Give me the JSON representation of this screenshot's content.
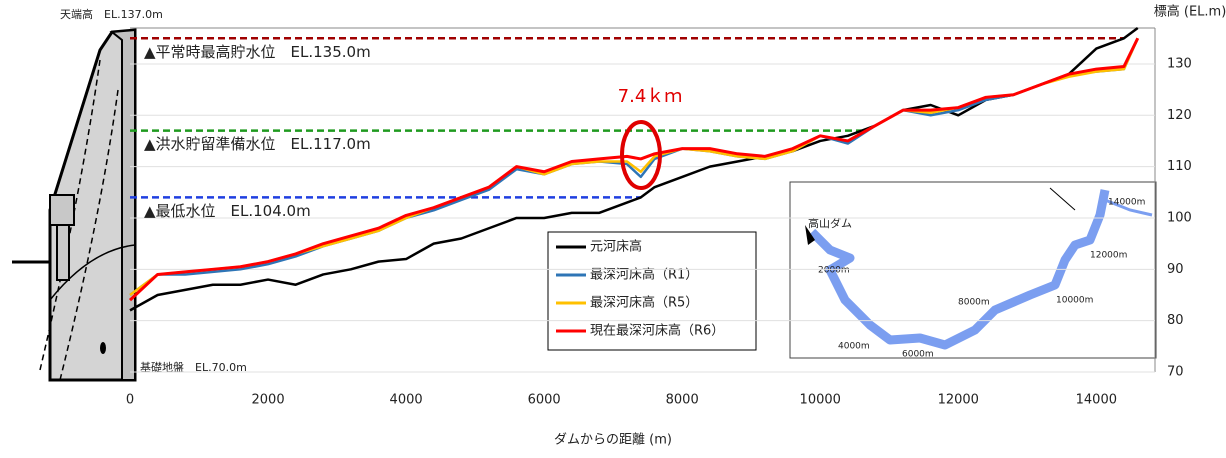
{
  "chart_data": {
    "type": "line",
    "x_label": "ダムからの距離 (m)",
    "y_label": "標高 (EL.m)",
    "x": [
      0,
      400,
      800,
      1200,
      1600,
      2000,
      2400,
      2800,
      3200,
      3600,
      4000,
      4400,
      4800,
      5200,
      5600,
      6000,
      6400,
      6800,
      7200,
      7400,
      7600,
      8000,
      8400,
      8800,
      9200,
      9600,
      10000,
      10400,
      10800,
      11200,
      11600,
      12000,
      12400,
      12800,
      13200,
      13600,
      14000,
      14400,
      14600
    ],
    "series": [
      {
        "name": "元河床高",
        "color": "#000000",
        "values": [
          82,
          85,
          86,
          87,
          87,
          88,
          87,
          89,
          90,
          91.5,
          92,
          95,
          96,
          98,
          100,
          100,
          101,
          101,
          103,
          104,
          106,
          108,
          110,
          111,
          112,
          113,
          115,
          116,
          118,
          121,
          122,
          120,
          123,
          124,
          126,
          128,
          133,
          135,
          137
        ]
      },
      {
        "name": "最深河床高（R1）",
        "color": "#2e75b6",
        "values": [
          85,
          89,
          89,
          89.5,
          90,
          91,
          92.5,
          94.5,
          96,
          97.5,
          100,
          101.5,
          103.5,
          105.5,
          109.5,
          108.5,
          110.5,
          111,
          110.5,
          108,
          111.5,
          113.5,
          113,
          112,
          111.5,
          113,
          116,
          114.5,
          118,
          121,
          120,
          121,
          123,
          124,
          126,
          128,
          128.5,
          129,
          135
        ]
      },
      {
        "name": "最深河床高（R5）",
        "color": "#ffc000",
        "values": [
          85,
          89,
          89.5,
          90,
          90.5,
          91.5,
          93,
          94.5,
          96,
          97.5,
          100,
          102,
          104,
          106,
          110,
          108.5,
          110.5,
          111,
          111,
          109,
          112,
          113.5,
          113,
          112,
          111.5,
          113,
          116,
          115,
          118,
          121,
          120.5,
          121.5,
          123.5,
          124,
          126,
          127.5,
          128.5,
          129,
          135
        ]
      },
      {
        "name": "現在最深河床高（R6）",
        "color": "#ff0000",
        "values": [
          84,
          89,
          89.5,
          90,
          90.5,
          91.5,
          93,
          95,
          96.5,
          98,
          100.5,
          102,
          104,
          106,
          110,
          109,
          111,
          111.5,
          112,
          111.5,
          112.5,
          113.5,
          113.5,
          112.5,
          112,
          113.5,
          116,
          115,
          118,
          121,
          121,
          121.5,
          123.5,
          124,
          126,
          128,
          129,
          129.5,
          135
        ]
      }
    ],
    "reference_lines": [
      {
        "label": "▲平常時最高貯水位　EL.135.0m",
        "value": 135,
        "color": "#a00000"
      },
      {
        "label": "▲洪水貯留準備水位　EL.117.0m",
        "value": 117,
        "color": "#1f9a1f"
      },
      {
        "label": "▲最低水位　EL.104.0m",
        "value": 104,
        "color": "#1f3fe0"
      }
    ],
    "annotations": [
      "天端高　EL.137.0m",
      "基礎地盤　EL.70.0m",
      "7.4ｋｍ"
    ],
    "inset_labels": [
      "高山ダム",
      "2000m",
      "4000m",
      "6000m",
      "8000m",
      "10000m",
      "12000m",
      "14000m"
    ],
    "xlim": [
      0,
      14850
    ],
    "ylim": [
      70,
      137
    ],
    "xticks": [
      0,
      2000,
      4000,
      6000,
      8000,
      10000,
      12000,
      14000
    ],
    "yticks": [
      70,
      80,
      90,
      100,
      110,
      120,
      130
    ],
    "grid": true
  }
}
